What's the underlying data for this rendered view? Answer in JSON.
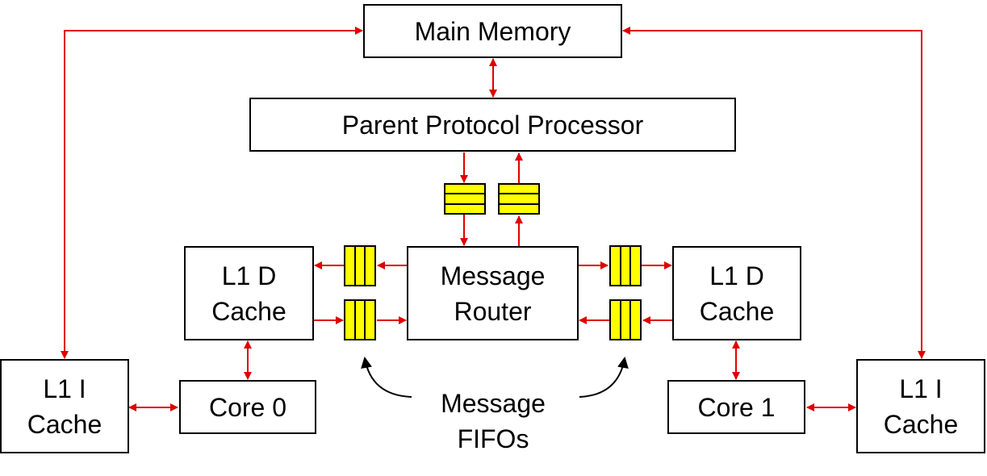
{
  "diagram": {
    "blocks": {
      "main_memory": "Main Memory",
      "parent_protocol_processor": "Parent Protocol Processor",
      "message_router": "Message\nRouter",
      "l1d_cache_left": "L1 D\nCache",
      "l1d_cache_right": "L1 D\nCache",
      "core_0": "Core 0",
      "core_1": "Core 1",
      "l1i_cache_left": "L1 I\nCache",
      "l1i_cache_right": "L1 I\nCache"
    },
    "annotation": "Message\nFIFOs",
    "colors": {
      "arrow": "#e00000",
      "fifo_fill": "#ffff00",
      "outline": "#000000"
    }
  }
}
